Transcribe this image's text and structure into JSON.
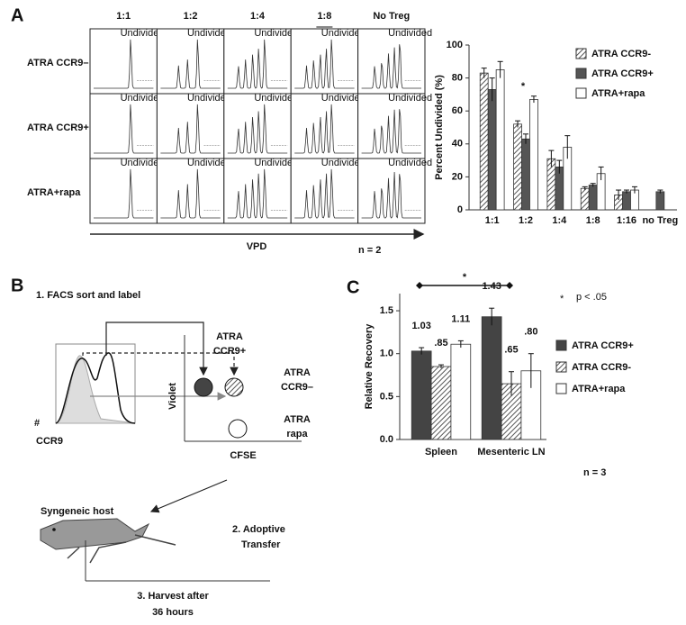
{
  "panel_labels": [
    "A",
    "B",
    "C"
  ],
  "flow_grid": {
    "columns": [
      "1:1",
      "1:2",
      "1:4",
      "1:8",
      "No Treg"
    ],
    "rows": [
      "ATRA CCR9–",
      "ATRA CCR9+",
      "ATRA+rapa"
    ],
    "cell_label": "Undivided",
    "x_axis_label": "VPD",
    "note": "n = 2"
  },
  "diagram": {
    "step1": "1. FACS sort and label",
    "ccr9_pos": [
      "ATRA",
      "CCR9+"
    ],
    "ccr9_neg": [
      "ATRA",
      "CCR9–"
    ],
    "rapa": [
      "ATRA",
      "rapa"
    ],
    "y_axis": "Violet",
    "x_axis": "CFSE",
    "hist_y": "#",
    "hist_x": "CCR9",
    "host": "Syngeneic host",
    "step2": [
      "2. Adoptive",
      "Transfer"
    ],
    "step3": [
      "3. Harvest after",
      "36 hours"
    ]
  },
  "chart_data": [
    {
      "type": "bar",
      "ylabel": "Percent Undivided (%)",
      "categories": [
        "1:1",
        "1:2",
        "1:4",
        "1:8",
        "1:16",
        "no Treg"
      ],
      "series": [
        {
          "name": "ATRA CCR9-",
          "color": "#777777",
          "hatch": true,
          "values": [
            83,
            52,
            31,
            13,
            9,
            null
          ],
          "errors": [
            3,
            2,
            5,
            1,
            3,
            null
          ]
        },
        {
          "name": "ATRA CCR9+",
          "color": "#555555",
          "hatch": false,
          "values": [
            73,
            43,
            26,
            15,
            11,
            11
          ],
          "errors": [
            7,
            3,
            4,
            1,
            1,
            1
          ]
        },
        {
          "name": "ATRA+rapa",
          "color": "#ffffff",
          "hatch": false,
          "values": [
            85,
            67,
            38,
            22,
            12,
            null
          ],
          "errors": [
            5,
            2,
            7,
            4,
            2,
            null
          ]
        }
      ],
      "ylim": [
        0,
        100
      ],
      "yticks": [
        0,
        20,
        40,
        60,
        80,
        100
      ],
      "annotations": [
        "*"
      ],
      "legend": "upper right"
    },
    {
      "type": "bar",
      "ylabel": "Relative Recovery",
      "categories": [
        "Spleen",
        "Mesenteric LN"
      ],
      "series": [
        {
          "name": "ATRA CCR9+",
          "color": "#444444",
          "hatch": false,
          "values": [
            1.03,
            1.43
          ],
          "errors": [
            0.04,
            0.1
          ],
          "value_labels": [
            "1.03",
            "1.43"
          ]
        },
        {
          "name": "ATRA CCR9-",
          "color": "#777777",
          "hatch": true,
          "values": [
            0.85,
            0.65
          ],
          "errors": [
            0.02,
            0.14
          ],
          "value_labels": [
            ".85",
            ".65"
          ]
        },
        {
          "name": "ATRA+rapa",
          "color": "#ffffff",
          "hatch": false,
          "values": [
            1.11,
            0.8
          ],
          "errors": [
            0.04,
            0.2
          ],
          "value_labels": [
            "1.11",
            ".80"
          ]
        }
      ],
      "ylim": [
        0,
        1.7
      ],
      "yticks": [
        {
          "value": 0,
          "label": "0.0"
        },
        0.5,
        {
          "value": 1,
          "label": "1.0"
        },
        1.5
      ],
      "annotations": [
        "*",
        "*",
        "p < .05",
        "n = 3"
      ],
      "legend": "right"
    }
  ]
}
